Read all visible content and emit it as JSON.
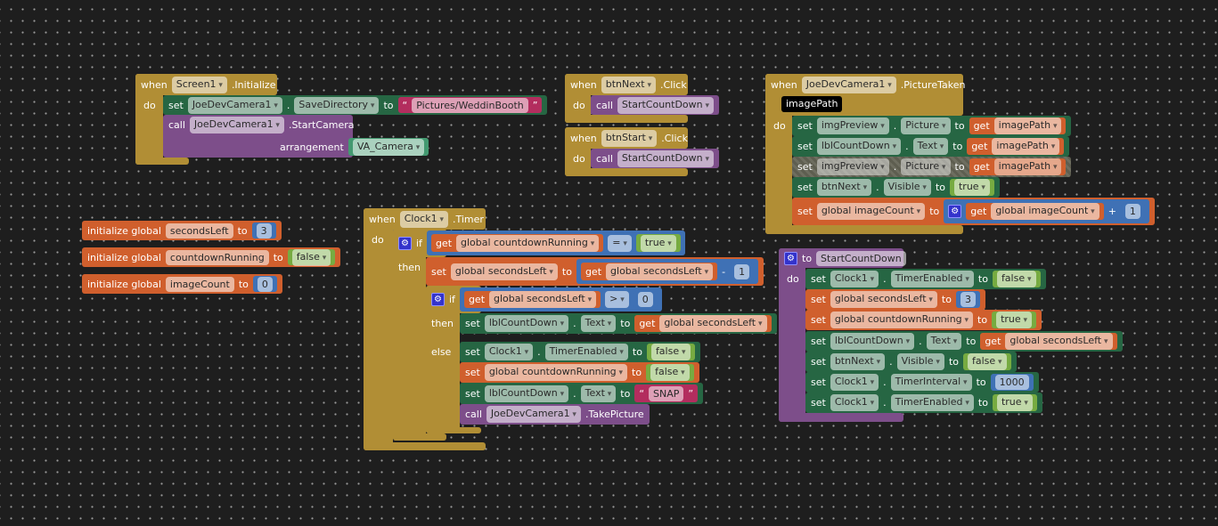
{
  "colors": {
    "event": "#b18e35",
    "ctrl": "#b18e35",
    "comp": "#266643",
    "proc": "#7d4e8a",
    "var": "#d05f2d",
    "math": "#3f71b5",
    "logic": "#77ab41",
    "text": "#b32d5e",
    "compval": "#439970",
    "background": "#1e1e1e"
  },
  "pieces": [
    {
      "cat": "none",
      "tokens": [
        [
          "k",
          "when"
        ],
        [
          "d",
          "Screen1"
        ],
        [
          "k",
          ".Initialize"
        ]
      ]
    },
    {
      "cat": "none",
      "tokens": [
        [
          "k",
          "do"
        ]
      ]
    },
    {
      "cat": "comp",
      "tokens": [
        [
          "k",
          "set"
        ],
        [
          "d",
          "JoeDevCamera1"
        ],
        [
          "k",
          "."
        ],
        [
          "d",
          "SaveDirectory"
        ],
        [
          "k",
          "to"
        ],
        [
          "v",
          "text",
          [
            [
              "k",
              "“"
            ],
            [
              "f",
              "Pictures/WeddinBooth"
            ],
            [
              "k",
              "”"
            ]
          ]
        ]
      ]
    },
    {
      "cat": "none",
      "tokens": [
        [
          "k",
          "call"
        ],
        [
          "d",
          "JoeDevCamera1"
        ],
        [
          "k",
          ".StartCamera"
        ]
      ]
    },
    {
      "cat": "none",
      "tokens": [
        [
          "k",
          "arrangement"
        ],
        [
          "v",
          "compval",
          [
            [
              "d",
              "VA_Camera"
            ]
          ]
        ]
      ]
    },
    {
      "cat": "none",
      "tokens": [
        [
          "k",
          "when"
        ],
        [
          "d",
          "btnNext"
        ],
        [
          "k",
          ".Click"
        ]
      ]
    },
    {
      "cat": "none",
      "tokens": [
        [
          "k",
          "do"
        ]
      ]
    },
    {
      "cat": "proc",
      "tokens": [
        [
          "k",
          "call"
        ],
        [
          "d",
          "StartCountDown"
        ]
      ]
    },
    {
      "cat": "none",
      "tokens": [
        [
          "k",
          "when"
        ],
        [
          "d",
          "btnStart"
        ],
        [
          "k",
          ".Click"
        ]
      ]
    },
    {
      "cat": "none",
      "tokens": [
        [
          "k",
          "do"
        ]
      ]
    },
    {
      "cat": "proc",
      "tokens": [
        [
          "k",
          "call"
        ],
        [
          "d",
          "StartCountDown"
        ]
      ]
    },
    {
      "cat": "none",
      "tokens": [
        [
          "k",
          "when"
        ],
        [
          "d",
          "JoeDevCamera1"
        ],
        [
          "k",
          ".PictureTaken"
        ]
      ]
    },
    {
      "cat": "none",
      "tokens": [
        [
          "p",
          "imagePath"
        ]
      ]
    },
    {
      "cat": "none",
      "tokens": [
        [
          "k",
          "do"
        ]
      ]
    },
    {
      "cat": "comp",
      "tokens": [
        [
          "k",
          "set"
        ],
        [
          "d",
          "imgPreview"
        ],
        [
          "k",
          "."
        ],
        [
          "d",
          "Picture"
        ],
        [
          "k",
          "to"
        ],
        [
          "v",
          "var",
          [
            [
              "k",
              "get"
            ],
            [
              "d",
              "imagePath"
            ]
          ]
        ]
      ]
    },
    {
      "cat": "comp",
      "tokens": [
        [
          "k",
          "set"
        ],
        [
          "d",
          "lblCountDown"
        ],
        [
          "k",
          "."
        ],
        [
          "d",
          "Text"
        ],
        [
          "k",
          "to"
        ],
        [
          "v",
          "var",
          [
            [
              "k",
              "get"
            ],
            [
              "d",
              "imagePath"
            ]
          ]
        ]
      ]
    },
    {
      "cat": "comp",
      "disabled": true,
      "tokens": [
        [
          "k",
          "set"
        ],
        [
          "d",
          "imgPreview"
        ],
        [
          "k",
          "."
        ],
        [
          "d",
          "Picture"
        ],
        [
          "k",
          "to"
        ],
        [
          "v",
          "var",
          [
            [
              "k",
              "get"
            ],
            [
              "d",
              "imagePath"
            ]
          ]
        ]
      ]
    },
    {
      "cat": "comp",
      "tokens": [
        [
          "k",
          "set"
        ],
        [
          "d",
          "btnNext"
        ],
        [
          "k",
          "."
        ],
        [
          "d",
          "Visible"
        ],
        [
          "k",
          "to"
        ],
        [
          "v",
          "logic",
          [
            [
              "d",
              "true"
            ]
          ]
        ]
      ]
    },
    {
      "cat": "var",
      "tokens": [
        [
          "k",
          "set"
        ],
        [
          "d",
          "global imageCount"
        ],
        [
          "k",
          "to"
        ],
        [
          "v",
          "math",
          [
            [
              "g"
            ],
            [
              "v",
              "var",
              [
                [
                  "k",
                  "get"
                ],
                [
                  "d",
                  "global imageCount"
                ]
              ]
            ],
            [
              "k",
              "+"
            ],
            [
              "v",
              "math",
              [
                [
                  "f",
                  "1"
                ]
              ]
            ]
          ]
        ]
      ]
    },
    {
      "cat": "var",
      "tokens": [
        [
          "k",
          "initialize global"
        ],
        [
          "f",
          "secondsLeft"
        ],
        [
          "k",
          "to"
        ],
        [
          "v",
          "math",
          [
            [
              "f",
              "3"
            ]
          ]
        ]
      ]
    },
    {
      "cat": "var",
      "tokens": [
        [
          "k",
          "initialize global"
        ],
        [
          "f",
          "countdownRunning"
        ],
        [
          "k",
          "to"
        ],
        [
          "v",
          "logic",
          [
            [
              "d",
              "false"
            ]
          ]
        ]
      ]
    },
    {
      "cat": "var",
      "tokens": [
        [
          "k",
          "initialize global"
        ],
        [
          "f",
          "imageCount"
        ],
        [
          "k",
          "to"
        ],
        [
          "v",
          "math",
          [
            [
              "f",
              "0"
            ]
          ]
        ]
      ]
    },
    {
      "cat": "none",
      "tokens": [
        [
          "k",
          "when"
        ],
        [
          "d",
          "Clock1"
        ],
        [
          "k",
          ".Timer"
        ]
      ]
    },
    {
      "cat": "none",
      "tokens": [
        [
          "k",
          "do"
        ]
      ]
    },
    {
      "cat": "none",
      "tokens": [
        [
          "g"
        ],
        [
          "k",
          "if"
        ],
        [
          "v",
          "math",
          [
            [
              "v",
              "var",
              [
                [
                  "k",
                  "get"
                ],
                [
                  "d",
                  "global countdownRunning"
                ]
              ]
            ],
            [
              "d",
              "="
            ],
            [
              "v",
              "logic",
              [
                [
                  "d",
                  "true"
                ]
              ]
            ]
          ]
        ]
      ]
    },
    {
      "cat": "none",
      "tokens": [
        [
          "k",
          "then"
        ]
      ]
    },
    {
      "cat": "var",
      "tokens": [
        [
          "k",
          "set"
        ],
        [
          "d",
          "global secondsLeft"
        ],
        [
          "k",
          "to"
        ],
        [
          "v",
          "math",
          [
            [
              "v",
              "var",
              [
                [
                  "k",
                  "get"
                ],
                [
                  "d",
                  "global secondsLeft"
                ]
              ]
            ],
            [
              "k",
              "-"
            ],
            [
              "v",
              "math",
              [
                [
                  "f",
                  "1"
                ]
              ]
            ]
          ]
        ]
      ]
    },
    {
      "cat": "none",
      "tokens": [
        [
          "g"
        ],
        [
          "k",
          "if"
        ],
        [
          "v",
          "math",
          [
            [
              "v",
              "var",
              [
                [
                  "k",
                  "get"
                ],
                [
                  "d",
                  "global secondsLeft"
                ]
              ]
            ],
            [
              "d",
              ">"
            ],
            [
              "v",
              "math",
              [
                [
                  "f",
                  "0"
                ]
              ]
            ]
          ]
        ]
      ]
    },
    {
      "cat": "none",
      "tokens": [
        [
          "k",
          "then"
        ]
      ]
    },
    {
      "cat": "comp",
      "tokens": [
        [
          "k",
          "set"
        ],
        [
          "d",
          "lblCountDown"
        ],
        [
          "k",
          "."
        ],
        [
          "d",
          "Text"
        ],
        [
          "k",
          "to"
        ],
        [
          "v",
          "var",
          [
            [
              "k",
              "get"
            ],
            [
              "d",
              "global secondsLeft"
            ]
          ]
        ]
      ]
    },
    {
      "cat": "none",
      "tokens": [
        [
          "k",
          "else"
        ]
      ]
    },
    {
      "cat": "comp",
      "tokens": [
        [
          "k",
          "set"
        ],
        [
          "d",
          "Clock1"
        ],
        [
          "k",
          "."
        ],
        [
          "d",
          "TimerEnabled"
        ],
        [
          "k",
          "to"
        ],
        [
          "v",
          "logic",
          [
            [
              "d",
              "false"
            ]
          ]
        ]
      ]
    },
    {
      "cat": "var",
      "tokens": [
        [
          "k",
          "set"
        ],
        [
          "d",
          "global countdownRunning"
        ],
        [
          "k",
          "to"
        ],
        [
          "v",
          "logic",
          [
            [
              "d",
              "false"
            ]
          ]
        ]
      ]
    },
    {
      "cat": "comp",
      "tokens": [
        [
          "k",
          "set"
        ],
        [
          "d",
          "lblCountDown"
        ],
        [
          "k",
          "."
        ],
        [
          "d",
          "Text"
        ],
        [
          "k",
          "to"
        ],
        [
          "v",
          "text",
          [
            [
              "k",
              "“"
            ],
            [
              "f",
              "SNAP"
            ],
            [
              "k",
              "”"
            ]
          ]
        ]
      ]
    },
    {
      "cat": "proc",
      "tokens": [
        [
          "k",
          "call"
        ],
        [
          "d",
          "JoeDevCamera1"
        ],
        [
          "k",
          ".TakePicture"
        ]
      ]
    },
    {
      "cat": "none",
      "tokens": [
        [
          "g"
        ],
        [
          "k",
          "to"
        ],
        [
          "f",
          "StartCountDown"
        ]
      ]
    },
    {
      "cat": "none",
      "tokens": [
        [
          "k",
          "do"
        ]
      ]
    },
    {
      "cat": "comp",
      "tokens": [
        [
          "k",
          "set"
        ],
        [
          "d",
          "Clock1"
        ],
        [
          "k",
          "."
        ],
        [
          "d",
          "TimerEnabled"
        ],
        [
          "k",
          "to"
        ],
        [
          "v",
          "logic",
          [
            [
              "d",
              "false"
            ]
          ]
        ]
      ]
    },
    {
      "cat": "var",
      "tokens": [
        [
          "k",
          "set"
        ],
        [
          "d",
          "global secondsLeft"
        ],
        [
          "k",
          "to"
        ],
        [
          "v",
          "math",
          [
            [
              "f",
              "3"
            ]
          ]
        ]
      ]
    },
    {
      "cat": "var",
      "tokens": [
        [
          "k",
          "set"
        ],
        [
          "d",
          "global countdownRunning"
        ],
        [
          "k",
          "to"
        ],
        [
          "v",
          "logic",
          [
            [
              "d",
              "true"
            ]
          ]
        ]
      ]
    },
    {
      "cat": "comp",
      "tokens": [
        [
          "k",
          "set"
        ],
        [
          "d",
          "lblCountDown"
        ],
        [
          "k",
          "."
        ],
        [
          "d",
          "Text"
        ],
        [
          "k",
          "to"
        ],
        [
          "v",
          "var",
          [
            [
              "k",
              "get"
            ],
            [
              "d",
              "global secondsLeft"
            ]
          ]
        ]
      ]
    },
    {
      "cat": "comp",
      "tokens": [
        [
          "k",
          "set"
        ],
        [
          "d",
          "btnNext"
        ],
        [
          "k",
          "."
        ],
        [
          "d",
          "Visible"
        ],
        [
          "k",
          "to"
        ],
        [
          "v",
          "logic",
          [
            [
              "d",
              "false"
            ]
          ]
        ]
      ]
    },
    {
      "cat": "comp",
      "tokens": [
        [
          "k",
          "set"
        ],
        [
          "d",
          "Clock1"
        ],
        [
          "k",
          "."
        ],
        [
          "d",
          "TimerInterval"
        ],
        [
          "k",
          "to"
        ],
        [
          "v",
          "math",
          [
            [
              "f",
              "1000"
            ]
          ]
        ]
      ]
    },
    {
      "cat": "comp",
      "tokens": [
        [
          "k",
          "set"
        ],
        [
          "d",
          "Clock1"
        ],
        [
          "k",
          "."
        ],
        [
          "d",
          "TimerEnabled"
        ],
        [
          "k",
          "to"
        ],
        [
          "v",
          "logic",
          [
            [
              "d",
              "true"
            ]
          ]
        ]
      ]
    }
  ]
}
